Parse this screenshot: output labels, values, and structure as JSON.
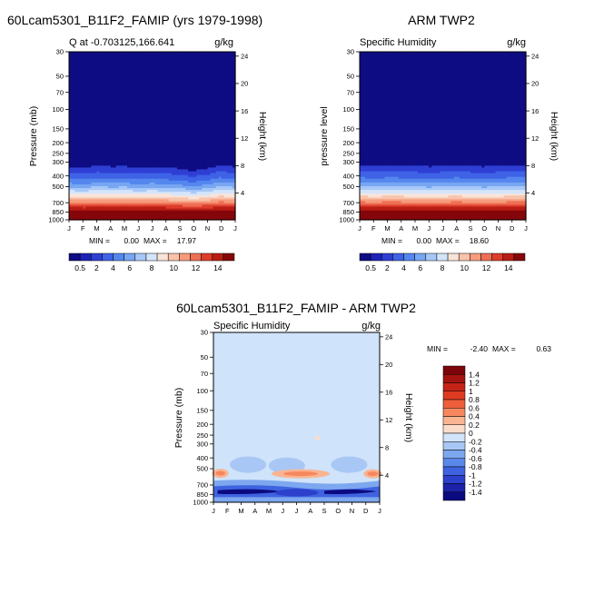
{
  "chart_data": [
    {
      "id": "p1",
      "type": "heatmap",
      "title": "60Lcam5301_B11F2_FAMIP (yrs 1979-1998)",
      "subtitle": "Q at -0.703125,166.641",
      "units": "g/kg",
      "ylabel": "Pressure (mb)",
      "ylabel_right": "Height (km)",
      "xticks": [
        "J",
        "F",
        "M",
        "A",
        "M",
        "J",
        "J",
        "A",
        "S",
        "O",
        "N",
        "D",
        "J"
      ],
      "yticks": [
        "30",
        "50",
        "70",
        "100",
        "150",
        "200",
        "250",
        "300",
        "400",
        "500",
        "700",
        "850",
        "1000"
      ],
      "yticks_right": [
        "24",
        "20",
        "16",
        "12",
        "8",
        "4"
      ],
      "stats": {
        "min_label": "MIN =",
        "min": "0.00",
        "max_label": "MAX =",
        "max": "17.97"
      },
      "colorbar_labels": [
        "0.5",
        "2",
        "4",
        "6",
        "8",
        "10",
        "12",
        "14"
      ],
      "moist_top_mb": [
        330,
        335,
        325,
        330,
        328,
        335,
        330,
        335,
        345,
        360,
        345,
        320,
        330
      ]
    },
    {
      "id": "p2",
      "type": "heatmap",
      "title": "ARM TWP2",
      "subtitle": "Specific Humidity",
      "units": "g/kg",
      "ylabel": "pressure level",
      "ylabel_right": "Height (km)",
      "xticks": [
        "J",
        "F",
        "M",
        "A",
        "M",
        "J",
        "J",
        "A",
        "S",
        "O",
        "N",
        "D",
        "J"
      ],
      "yticks": [
        "30",
        "50",
        "70",
        "100",
        "150",
        "200",
        "250",
        "300",
        "400",
        "500",
        "700",
        "850",
        "1000"
      ],
      "yticks_right": [
        "24",
        "20",
        "16",
        "12",
        "8",
        "4"
      ],
      "stats": {
        "min_label": "MIN =",
        "min": "0.00",
        "max_label": "MAX =",
        "max": "18.60"
      },
      "colorbar_labels": [
        "0.5",
        "2",
        "4",
        "6",
        "8",
        "10",
        "12",
        "14"
      ],
      "moist_top_mb": [
        320,
        325,
        320,
        322,
        325,
        330,
        325,
        320,
        325,
        330,
        325,
        320,
        320
      ]
    },
    {
      "id": "p3",
      "type": "heatmap",
      "title": "60Lcam5301_B11F2_FAMIP - ARM TWP2",
      "subtitle": "Specific Humidity",
      "units": "g/kg",
      "ylabel": "Pressure (mb)",
      "ylabel_right": "Height (km)",
      "xticks": [
        "J",
        "F",
        "M",
        "A",
        "M",
        "J",
        "J",
        "A",
        "S",
        "O",
        "N",
        "D",
        "J"
      ],
      "yticks": [
        "30",
        "50",
        "70",
        "100",
        "150",
        "200",
        "250",
        "300",
        "400",
        "500",
        "700",
        "850",
        "1000"
      ],
      "yticks_right": [
        "24",
        "20",
        "16",
        "12",
        "8",
        "4"
      ],
      "stats": {
        "min_label": "MIN =",
        "min": "-2.40",
        "max_label": "MAX =",
        "max": "0.63"
      },
      "colorbar_labels": [
        "1.4",
        "1.2",
        "1",
        "0.8",
        "0.6",
        "0.4",
        "0.2",
        "0",
        "-0.2",
        "-0.4",
        "-0.6",
        "-0.8",
        "-1",
        "-1.2",
        "-1.4"
      ]
    }
  ],
  "palettes": {
    "q_levels": [
      "#0f0d83",
      "#1d22b8",
      "#2f3fd4",
      "#3e63e6",
      "#5587ee",
      "#77a6f2",
      "#a7c8f7",
      "#d4e5fb",
      "#f8e4d9",
      "#f9c3ab",
      "#f69c7c",
      "#ee6e54",
      "#de3c2c",
      "#b81d14",
      "#85060b"
    ],
    "diff_levels": [
      "#7b050a",
      "#a3130f",
      "#c52317",
      "#de3b22",
      "#ee5e3a",
      "#f6875e",
      "#f9b492",
      "#fbdccb",
      "#d2e4f9",
      "#a9c7f4",
      "#7da8ef",
      "#5a87ea",
      "#3f63e0",
      "#2c40cc",
      "#1b22a8",
      "#0c0a80"
    ],
    "diff_background": "#cfe3fa"
  }
}
